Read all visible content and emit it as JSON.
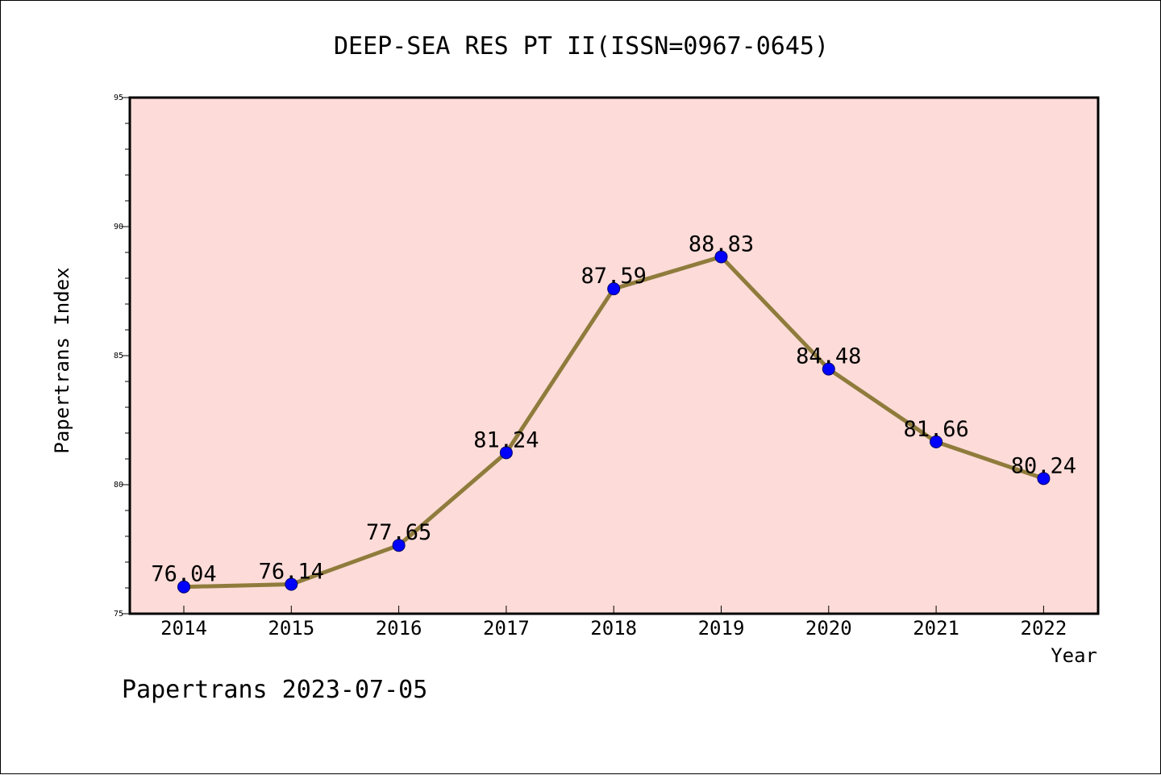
{
  "chart_data": {
    "type": "line",
    "title": "DEEP-SEA RES PT II(ISSN=0967-0645)",
    "xlabel": "Year",
    "ylabel": "Papertrans Index",
    "categories": [
      "2014",
      "2015",
      "2016",
      "2017",
      "2018",
      "2019",
      "2020",
      "2021",
      "2022"
    ],
    "series": [
      {
        "values": [
          76.04,
          76.14,
          77.65,
          81.24,
          87.59,
          88.83,
          84.48,
          81.66,
          80.24
        ],
        "labels": [
          "76.04",
          "76.14",
          "77.65",
          "81.24",
          "87.59",
          "88.83",
          "84.48",
          "81.66",
          "80.24"
        ]
      }
    ],
    "ylim": [
      75,
      95
    ],
    "yticks": [
      "75",
      "80",
      "85",
      "90",
      "95"
    ],
    "grid": false,
    "colors": {
      "plot_background": "#FDDBD8",
      "line": "#8F7C3C",
      "marker": "#0000FF"
    }
  },
  "footer": "Papertrans 2023-07-05"
}
